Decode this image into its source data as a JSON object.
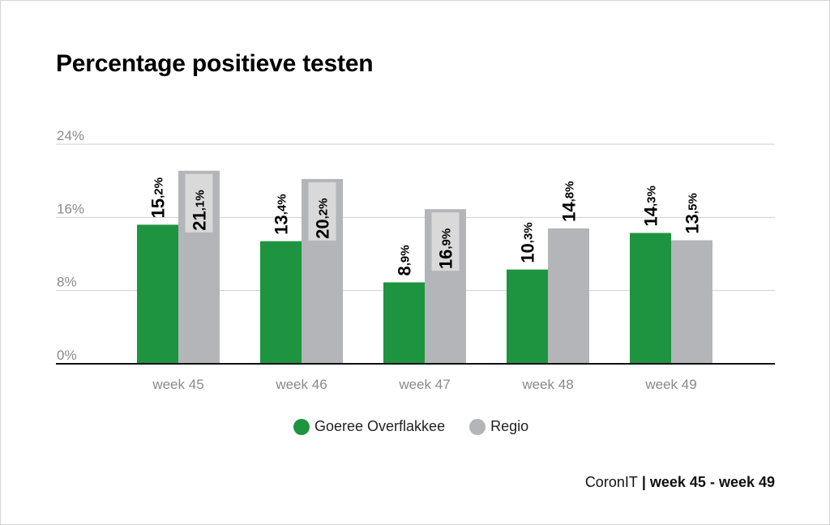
{
  "chart_data": {
    "type": "bar",
    "title": "Percentage positieve testen",
    "categories": [
      "week 45",
      "week 46",
      "week 47",
      "week 48",
      "week 49"
    ],
    "series": [
      {
        "name": "Goeree Overflakkee",
        "color": "#1e9440",
        "values": [
          15.2,
          13.4,
          8.9,
          10.3,
          14.3
        ],
        "labels": [
          {
            "int": "15",
            "dec": ",2%"
          },
          {
            "int": "13",
            "dec": ",4%"
          },
          {
            "int": "8",
            "dec": ",9%"
          },
          {
            "int": "10",
            "dec": ",3%"
          },
          {
            "int": "14",
            "dec": ",3%"
          }
        ]
      },
      {
        "name": "Regio",
        "color": "#b3b5b8",
        "values": [
          21.1,
          20.2,
          16.9,
          14.8,
          13.5
        ],
        "labels": [
          {
            "int": "21",
            "dec": ",1%"
          },
          {
            "int": "20",
            "dec": ",2%"
          },
          {
            "int": "16",
            "dec": ",9%"
          },
          {
            "int": "14",
            "dec": ",8%"
          },
          {
            "int": "13",
            "dec": ",5%"
          }
        ]
      }
    ],
    "yticks": [
      "0%",
      "8%",
      "16%",
      "24%"
    ],
    "ytick_values": [
      0,
      8,
      16,
      24
    ],
    "ylim": [
      0,
      24
    ],
    "grid": true,
    "legend": "bottom"
  },
  "source": {
    "prefix": "CoronIT",
    "separator": " | ",
    "range": "week 45 - week 49"
  }
}
